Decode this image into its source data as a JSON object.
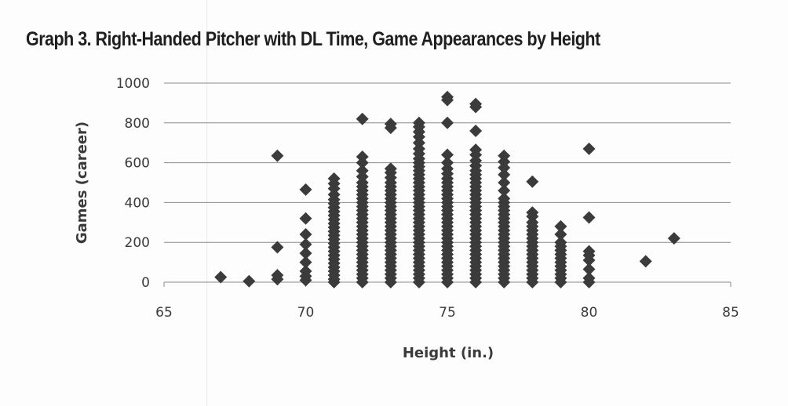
{
  "chart_data": {
    "type": "scatter",
    "title": "Graph 3. Right-Handed Pitcher with DL Time, Game Appearances by Height",
    "xlabel": "Height (in.)",
    "ylabel": "Games (career)",
    "xlim": [
      65,
      85
    ],
    "ylim": [
      0,
      1000
    ],
    "xticks": [
      65,
      70,
      75,
      80,
      85
    ],
    "yticks": [
      0,
      200,
      400,
      600,
      800,
      1000
    ],
    "grid": "horizontal",
    "legend": "none",
    "marker_color": "#3b3b3b",
    "series": [
      {
        "points": [
          [
            67,
            25
          ],
          [
            68,
            5
          ],
          [
            69,
            15
          ],
          [
            69,
            35
          ],
          [
            69,
            175
          ],
          [
            69,
            635
          ],
          [
            70,
            10
          ],
          [
            70,
            30
          ],
          [
            70,
            55
          ],
          [
            70,
            100
          ],
          [
            70,
            145
          ],
          [
            70,
            190
          ],
          [
            70,
            240
          ],
          [
            70,
            320
          ],
          [
            70,
            465
          ],
          [
            71,
            0
          ],
          [
            71,
            15
          ],
          [
            71,
            35
          ],
          [
            71,
            55
          ],
          [
            71,
            75
          ],
          [
            71,
            95
          ],
          [
            71,
            115
          ],
          [
            71,
            135
          ],
          [
            71,
            155
          ],
          [
            71,
            175
          ],
          [
            71,
            195
          ],
          [
            71,
            215
          ],
          [
            71,
            235
          ],
          [
            71,
            255
          ],
          [
            71,
            275
          ],
          [
            71,
            295
          ],
          [
            71,
            315
          ],
          [
            71,
            335
          ],
          [
            71,
            355
          ],
          [
            71,
            375
          ],
          [
            71,
            395
          ],
          [
            71,
            415
          ],
          [
            71,
            440
          ],
          [
            71,
            470
          ],
          [
            71,
            495
          ],
          [
            71,
            520
          ],
          [
            72,
            0
          ],
          [
            72,
            20
          ],
          [
            72,
            40
          ],
          [
            72,
            60
          ],
          [
            72,
            80
          ],
          [
            72,
            100
          ],
          [
            72,
            120
          ],
          [
            72,
            140
          ],
          [
            72,
            160
          ],
          [
            72,
            180
          ],
          [
            72,
            200
          ],
          [
            72,
            220
          ],
          [
            72,
            240
          ],
          [
            72,
            260
          ],
          [
            72,
            280
          ],
          [
            72,
            300
          ],
          [
            72,
            320
          ],
          [
            72,
            340
          ],
          [
            72,
            360
          ],
          [
            72,
            380
          ],
          [
            72,
            400
          ],
          [
            72,
            420
          ],
          [
            72,
            440
          ],
          [
            72,
            460
          ],
          [
            72,
            480
          ],
          [
            72,
            500
          ],
          [
            72,
            530
          ],
          [
            72,
            560
          ],
          [
            72,
            600
          ],
          [
            72,
            630
          ],
          [
            72,
            820
          ],
          [
            73,
            0
          ],
          [
            73,
            20
          ],
          [
            73,
            40
          ],
          [
            73,
            60
          ],
          [
            73,
            80
          ],
          [
            73,
            100
          ],
          [
            73,
            120
          ],
          [
            73,
            140
          ],
          [
            73,
            160
          ],
          [
            73,
            180
          ],
          [
            73,
            200
          ],
          [
            73,
            220
          ],
          [
            73,
            240
          ],
          [
            73,
            260
          ],
          [
            73,
            280
          ],
          [
            73,
            300
          ],
          [
            73,
            320
          ],
          [
            73,
            340
          ],
          [
            73,
            360
          ],
          [
            73,
            380
          ],
          [
            73,
            400
          ],
          [
            73,
            420
          ],
          [
            73,
            440
          ],
          [
            73,
            460
          ],
          [
            73,
            480
          ],
          [
            73,
            500
          ],
          [
            73,
            525
          ],
          [
            73,
            550
          ],
          [
            73,
            570
          ],
          [
            73,
            775
          ],
          [
            73,
            795
          ],
          [
            74,
            0
          ],
          [
            74,
            20
          ],
          [
            74,
            40
          ],
          [
            74,
            60
          ],
          [
            74,
            80
          ],
          [
            74,
            100
          ],
          [
            74,
            120
          ],
          [
            74,
            140
          ],
          [
            74,
            160
          ],
          [
            74,
            180
          ],
          [
            74,
            200
          ],
          [
            74,
            220
          ],
          [
            74,
            240
          ],
          [
            74,
            260
          ],
          [
            74,
            280
          ],
          [
            74,
            300
          ],
          [
            74,
            320
          ],
          [
            74,
            340
          ],
          [
            74,
            360
          ],
          [
            74,
            380
          ],
          [
            74,
            400
          ],
          [
            74,
            420
          ],
          [
            74,
            440
          ],
          [
            74,
            460
          ],
          [
            74,
            480
          ],
          [
            74,
            500
          ],
          [
            74,
            520
          ],
          [
            74,
            540
          ],
          [
            74,
            560
          ],
          [
            74,
            580
          ],
          [
            74,
            600
          ],
          [
            74,
            620
          ],
          [
            74,
            645
          ],
          [
            74,
            670
          ],
          [
            74,
            700
          ],
          [
            74,
            730
          ],
          [
            74,
            755
          ],
          [
            74,
            780
          ],
          [
            74,
            800
          ],
          [
            75,
            0
          ],
          [
            75,
            20
          ],
          [
            75,
            40
          ],
          [
            75,
            60
          ],
          [
            75,
            80
          ],
          [
            75,
            100
          ],
          [
            75,
            120
          ],
          [
            75,
            140
          ],
          [
            75,
            160
          ],
          [
            75,
            180
          ],
          [
            75,
            200
          ],
          [
            75,
            220
          ],
          [
            75,
            240
          ],
          [
            75,
            260
          ],
          [
            75,
            280
          ],
          [
            75,
            300
          ],
          [
            75,
            320
          ],
          [
            75,
            340
          ],
          [
            75,
            360
          ],
          [
            75,
            380
          ],
          [
            75,
            400
          ],
          [
            75,
            420
          ],
          [
            75,
            440
          ],
          [
            75,
            460
          ],
          [
            75,
            480
          ],
          [
            75,
            500
          ],
          [
            75,
            520
          ],
          [
            75,
            545
          ],
          [
            75,
            570
          ],
          [
            75,
            600
          ],
          [
            75,
            640
          ],
          [
            75,
            800
          ],
          [
            75,
            915
          ],
          [
            75,
            930
          ],
          [
            76,
            0
          ],
          [
            76,
            20
          ],
          [
            76,
            40
          ],
          [
            76,
            60
          ],
          [
            76,
            80
          ],
          [
            76,
            100
          ],
          [
            76,
            120
          ],
          [
            76,
            140
          ],
          [
            76,
            160
          ],
          [
            76,
            180
          ],
          [
            76,
            200
          ],
          [
            76,
            220
          ],
          [
            76,
            240
          ],
          [
            76,
            260
          ],
          [
            76,
            280
          ],
          [
            76,
            300
          ],
          [
            76,
            320
          ],
          [
            76,
            340
          ],
          [
            76,
            360
          ],
          [
            76,
            380
          ],
          [
            76,
            400
          ],
          [
            76,
            420
          ],
          [
            76,
            440
          ],
          [
            76,
            460
          ],
          [
            76,
            480
          ],
          [
            76,
            500
          ],
          [
            76,
            520
          ],
          [
            76,
            540
          ],
          [
            76,
            560
          ],
          [
            76,
            585
          ],
          [
            76,
            610
          ],
          [
            76,
            640
          ],
          [
            76,
            665
          ],
          [
            76,
            760
          ],
          [
            76,
            880
          ],
          [
            76,
            895
          ],
          [
            77,
            0
          ],
          [
            77,
            20
          ],
          [
            77,
            40
          ],
          [
            77,
            60
          ],
          [
            77,
            80
          ],
          [
            77,
            100
          ],
          [
            77,
            120
          ],
          [
            77,
            140
          ],
          [
            77,
            160
          ],
          [
            77,
            180
          ],
          [
            77,
            200
          ],
          [
            77,
            220
          ],
          [
            77,
            240
          ],
          [
            77,
            260
          ],
          [
            77,
            280
          ],
          [
            77,
            300
          ],
          [
            77,
            320
          ],
          [
            77,
            340
          ],
          [
            77,
            360
          ],
          [
            77,
            380
          ],
          [
            77,
            400
          ],
          [
            77,
            420
          ],
          [
            77,
            460
          ],
          [
            77,
            500
          ],
          [
            77,
            540
          ],
          [
            77,
            575
          ],
          [
            77,
            605
          ],
          [
            77,
            635
          ],
          [
            78,
            0
          ],
          [
            78,
            20
          ],
          [
            78,
            40
          ],
          [
            78,
            60
          ],
          [
            78,
            80
          ],
          [
            78,
            100
          ],
          [
            78,
            120
          ],
          [
            78,
            140
          ],
          [
            78,
            160
          ],
          [
            78,
            180
          ],
          [
            78,
            200
          ],
          [
            78,
            220
          ],
          [
            78,
            240
          ],
          [
            78,
            260
          ],
          [
            78,
            280
          ],
          [
            78,
            300
          ],
          [
            78,
            330
          ],
          [
            78,
            350
          ],
          [
            78,
            505
          ],
          [
            79,
            0
          ],
          [
            79,
            20
          ],
          [
            79,
            40
          ],
          [
            79,
            60
          ],
          [
            79,
            80
          ],
          [
            79,
            100
          ],
          [
            79,
            120
          ],
          [
            79,
            140
          ],
          [
            79,
            160
          ],
          [
            79,
            180
          ],
          [
            79,
            200
          ],
          [
            79,
            240
          ],
          [
            79,
            280
          ],
          [
            80,
            0
          ],
          [
            80,
            20
          ],
          [
            80,
            65
          ],
          [
            80,
            110
          ],
          [
            80,
            135
          ],
          [
            80,
            155
          ],
          [
            80,
            325
          ],
          [
            80,
            670
          ],
          [
            82,
            105
          ],
          [
            83,
            220
          ]
        ]
      }
    ]
  }
}
